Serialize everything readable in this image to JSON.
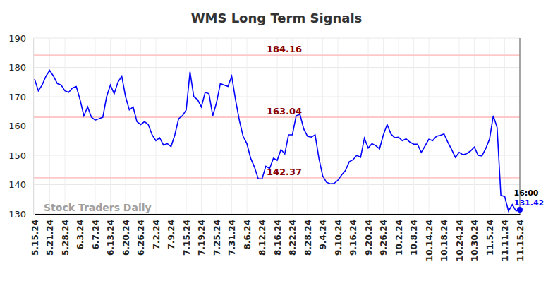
{
  "chart_data": {
    "type": "line",
    "title": "WMS Long Term Signals",
    "categories": [
      "5.15.24",
      null,
      null,
      null,
      "5.21.24",
      null,
      null,
      null,
      "5.28.24",
      null,
      null,
      null,
      "6.3.24",
      null,
      null,
      null,
      "6.7.24",
      null,
      null,
      null,
      "6.13.24",
      null,
      null,
      null,
      "6.20.24",
      null,
      null,
      null,
      "6.26.24",
      null,
      null,
      null,
      "7.2.24",
      null,
      null,
      null,
      "7.9.24",
      null,
      null,
      null,
      "7.15.24",
      null,
      null,
      null,
      "7.19.24",
      null,
      null,
      null,
      "7.25.24",
      null,
      null,
      null,
      "7.31.24",
      null,
      null,
      null,
      "8.6.24",
      null,
      null,
      null,
      "8.12.24",
      null,
      null,
      null,
      "8.16.24",
      null,
      null,
      null,
      "8.22.24",
      null,
      null,
      null,
      "8.28.24",
      null,
      null,
      null,
      "9.4.24",
      null,
      null,
      null,
      "9.10.24",
      null,
      null,
      null,
      "9.16.24",
      null,
      null,
      null,
      "9.20.24",
      null,
      null,
      null,
      "9.26.24",
      null,
      null,
      null,
      "10.2.24",
      null,
      null,
      null,
      "10.8.24",
      null,
      null,
      null,
      "10.14.24",
      null,
      null,
      null,
      "10.18.24",
      null,
      null,
      null,
      "10.24.24",
      null,
      null,
      null,
      "10.30.24",
      null,
      null,
      null,
      "11.5.24",
      null,
      null,
      null,
      "11.11.24",
      null,
      null,
      null,
      "11.15.24"
    ],
    "values": [
      176,
      172,
      174,
      177,
      179,
      177,
      174.5,
      174,
      172,
      171.5,
      173,
      173.5,
      169,
      163.5,
      166.5,
      163,
      162,
      162.5,
      163,
      170,
      174,
      171,
      175,
      177,
      170,
      165.5,
      166.5,
      161.5,
      160.5,
      161.5,
      160.5,
      157,
      155,
      156,
      153.5,
      154,
      153,
      157,
      162.5,
      163.5,
      165.5,
      178.5,
      170,
      169,
      166.5,
      171.5,
      171,
      163.5,
      168,
      174.5,
      174,
      173.5,
      177,
      169,
      162,
      156.5,
      154,
      149,
      146,
      142,
      142,
      146.3,
      145.5,
      149,
      148.3,
      152,
      150.5,
      157,
      157,
      163.5,
      164,
      159,
      156.5,
      156.2,
      157,
      149,
      143,
      140.8,
      140.3,
      140.4,
      141.5,
      143.3,
      144.8,
      147.8,
      148.5,
      150,
      149.3,
      155.8,
      152.5,
      154,
      153.3,
      152.2,
      157,
      160.5,
      157.3,
      156,
      156.2,
      155,
      155.6,
      154.5,
      153.8,
      153.8,
      151,
      153.2,
      155.5,
      155,
      156.5,
      156.8,
      157.3,
      154.5,
      152,
      149.3,
      151,
      150.2,
      150.6,
      151.5,
      152.8,
      150,
      149.8,
      152.3,
      155.5,
      163.5,
      159.5,
      136.3,
      136,
      131,
      133.2,
      131,
      131.42
    ],
    "color": "#0000ff",
    "ylim": [
      130,
      190
    ],
    "yticks": [
      130,
      140,
      150,
      160,
      170,
      180,
      190
    ],
    "grid": true,
    "levels": [
      184.16,
      163.04,
      142.37
    ],
    "annotations": [
      {
        "text": "16:00"
      },
      {
        "text": "Stock Traders Daily"
      }
    ]
  }
}
